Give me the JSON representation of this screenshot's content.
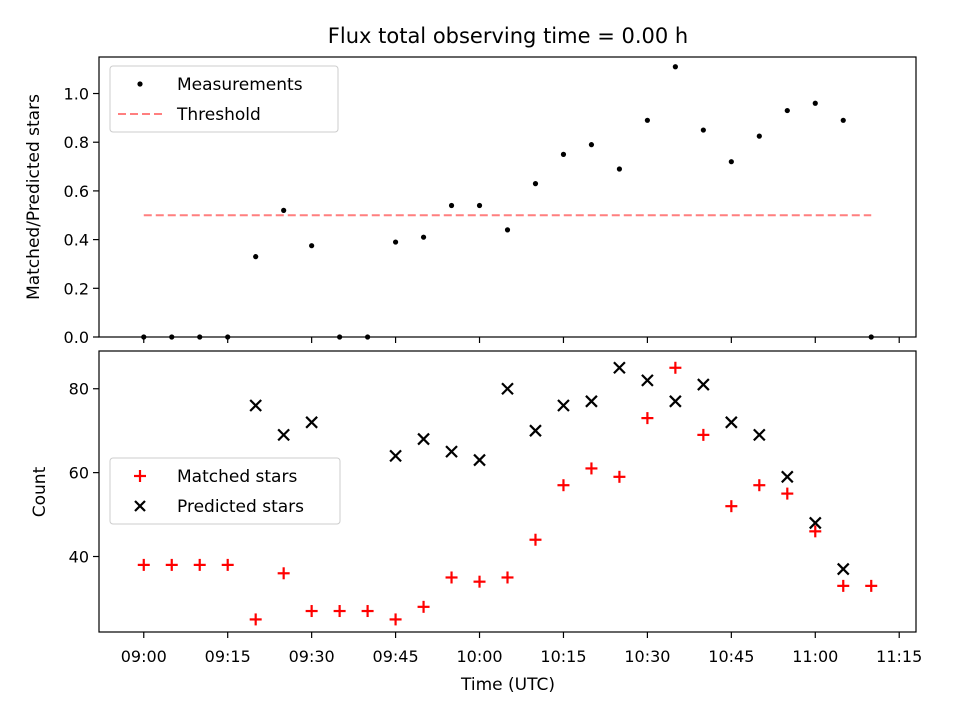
{
  "chart_data": [
    {
      "panel": "top",
      "type": "scatter",
      "title": "Flux total observing time = 0.00 h",
      "xlabel": "",
      "ylabel": "Matched/Predicted stars",
      "xlim": [
        "08:52",
        "11:18"
      ],
      "ylim": [
        0.0,
        1.15
      ],
      "x_ticks": [
        "09:00",
        "09:15",
        "09:30",
        "09:45",
        "10:00",
        "10:15",
        "10:30",
        "10:45",
        "11:00",
        "11:15"
      ],
      "y_ticks": [
        "0.0",
        "0.2",
        "0.4",
        "0.6",
        "0.8",
        "1.0"
      ],
      "legend": "top-left",
      "series": [
        {
          "name": "Measurements",
          "color": "#000000",
          "marker": "dot",
          "x": [
            "09:00",
            "09:05",
            "09:10",
            "09:15",
            "09:20",
            "09:25",
            "09:30",
            "09:35",
            "09:40",
            "09:45",
            "09:50",
            "09:55",
            "10:00",
            "10:05",
            "10:10",
            "10:15",
            "10:20",
            "10:25",
            "10:30",
            "10:35",
            "10:40",
            "10:45",
            "10:50",
            "10:55",
            "11:00",
            "11:05",
            "11:10"
          ],
          "y": [
            0.0,
            0.0,
            0.0,
            0.0,
            0.33,
            0.52,
            0.375,
            0.0,
            0.0,
            0.39,
            0.41,
            0.54,
            0.54,
            0.44,
            0.63,
            0.75,
            0.79,
            0.69,
            0.89,
            1.11,
            0.85,
            0.72,
            0.825,
            0.93,
            0.96,
            0.89,
            0.0
          ]
        },
        {
          "name": "Threshold",
          "color": "#ff7f7f",
          "style": "dashed",
          "x": [
            "09:00",
            "11:10"
          ],
          "y": [
            0.5,
            0.5
          ]
        }
      ]
    },
    {
      "panel": "bottom",
      "type": "scatter",
      "title": "",
      "xlabel": "Time (UTC)",
      "ylabel": "Count",
      "xlim": [
        "08:52",
        "11:18"
      ],
      "ylim": [
        22,
        89
      ],
      "x_ticks": [
        "09:00",
        "09:15",
        "09:30",
        "09:45",
        "10:00",
        "10:15",
        "10:30",
        "10:45",
        "11:00",
        "11:15"
      ],
      "y_ticks": [
        "40",
        "60",
        "80"
      ],
      "legend": "center-left",
      "series": [
        {
          "name": "Matched stars",
          "color": "#ff0000",
          "marker": "plus",
          "x": [
            "09:00",
            "09:05",
            "09:10",
            "09:15",
            "09:20",
            "09:25",
            "09:30",
            "09:35",
            "09:40",
            "09:45",
            "09:50",
            "09:55",
            "10:00",
            "10:05",
            "10:10",
            "10:15",
            "10:20",
            "10:25",
            "10:30",
            "10:35",
            "10:40",
            "10:45",
            "10:50",
            "10:55",
            "11:00",
            "11:05",
            "11:10"
          ],
          "y": [
            38,
            38,
            38,
            38,
            25,
            36,
            27,
            27,
            27,
            25,
            28,
            35,
            34,
            35,
            44,
            57,
            61,
            59,
            73,
            85,
            69,
            52,
            57,
            55,
            46,
            33,
            33
          ]
        },
        {
          "name": "Predicted stars",
          "color": "#000000",
          "marker": "x",
          "x": [
            "09:20",
            "09:25",
            "09:30",
            "09:45",
            "09:50",
            "09:55",
            "10:00",
            "10:05",
            "10:10",
            "10:15",
            "10:20",
            "10:25",
            "10:30",
            "10:35",
            "10:40",
            "10:45",
            "10:50",
            "10:55",
            "11:00",
            "11:05"
          ],
          "y": [
            76,
            69,
            72,
            64,
            68,
            65,
            63,
            80,
            70,
            76,
            77,
            85,
            82,
            77,
            81,
            72,
            69,
            59,
            48,
            37
          ]
        }
      ]
    }
  ]
}
